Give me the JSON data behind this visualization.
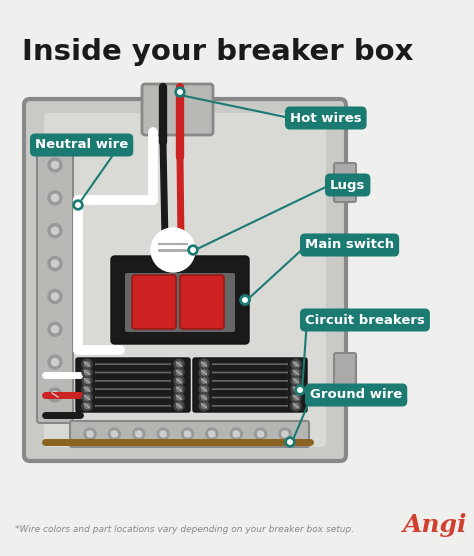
{
  "title": "Inside your breaker box",
  "background_color": "#efefed",
  "panel_outer_color": "#c8c8c5",
  "panel_inner_color": "#d8d8d5",
  "panel_border_color": "#7a7a7a",
  "label_bg_color": "#1b7b72",
  "label_text_color": "#ffffff",
  "footnote": "*Wire colors and part locations vary depending on your breaker box setup.",
  "angi_text": "Angi",
  "angi_color": "#d04030"
}
